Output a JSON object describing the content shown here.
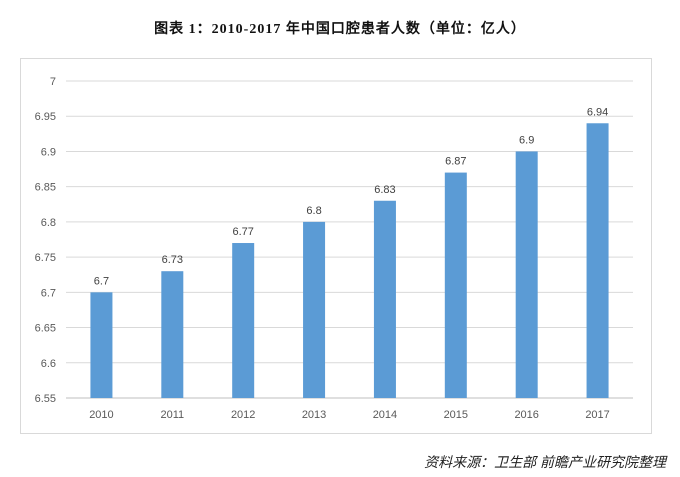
{
  "title": "图表 1：2010-2017 年中国口腔患者人数（单位：亿人）",
  "source": "资料来源：卫生部 前瞻产业研究院整理",
  "chart_data": {
    "type": "bar",
    "title": "图表 1：2010-2017 年中国口腔患者人数（单位：亿人）",
    "categories": [
      "2010",
      "2011",
      "2012",
      "2013",
      "2014",
      "2015",
      "2016",
      "2017"
    ],
    "values": [
      6.7,
      6.73,
      6.77,
      6.8,
      6.83,
      6.87,
      6.9,
      6.94
    ],
    "data_labels": [
      "6.7",
      "6.73",
      "6.77",
      "6.8",
      "6.83",
      "6.87",
      "6.9",
      "6.94"
    ],
    "ylim": [
      6.55,
      7
    ],
    "yticks": [
      "6.55",
      "6.6",
      "6.65",
      "6.7",
      "6.75",
      "6.8",
      "6.85",
      "6.9",
      "6.95",
      "7"
    ],
    "grid": true,
    "bar_color": "#5b9bd5",
    "xlabel": "",
    "ylabel": ""
  }
}
